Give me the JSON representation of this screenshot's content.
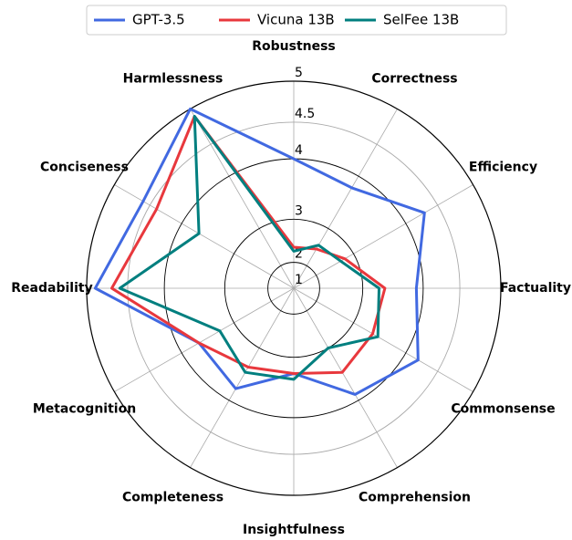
{
  "chart_data": {
    "type": "radar",
    "categories": [
      "Robustness",
      "Correctness",
      "Efficiency",
      "Factuality",
      "Commonsense",
      "Comprehension",
      "Insightfulness",
      "Completeness",
      "Metacognition",
      "Readability",
      "Conciseness",
      "Harmlessness"
    ],
    "series": [
      {
        "name": "GPT-3.5",
        "color": "#4169e1",
        "values": [
          4.0,
          3.8,
          4.3,
          3.9,
          4.2,
          3.9,
          3.3,
          3.8,
          3.7,
          4.9,
          4.6,
          5.0
        ]
      },
      {
        "name": "Vicuna 13B",
        "color": "#e8383d",
        "values": [
          2.4,
          2.5,
          2.8,
          3.4,
          3.4,
          3.5,
          3.3,
          3.4,
          3.7,
          4.7,
          4.4,
          4.9
        ]
      },
      {
        "name": "SelFee 13B",
        "color": "#007f7f",
        "values": [
          2.3,
          2.6,
          2.7,
          3.3,
          3.5,
          3.0,
          3.4,
          3.5,
          3.3,
          4.6,
          3.7,
          4.9
        ]
      }
    ],
    "rlim": [
      1,
      5
    ],
    "rticks": [
      1,
      2,
      3,
      4,
      4.5,
      5
    ],
    "rscale": "square",
    "legend": "top"
  }
}
